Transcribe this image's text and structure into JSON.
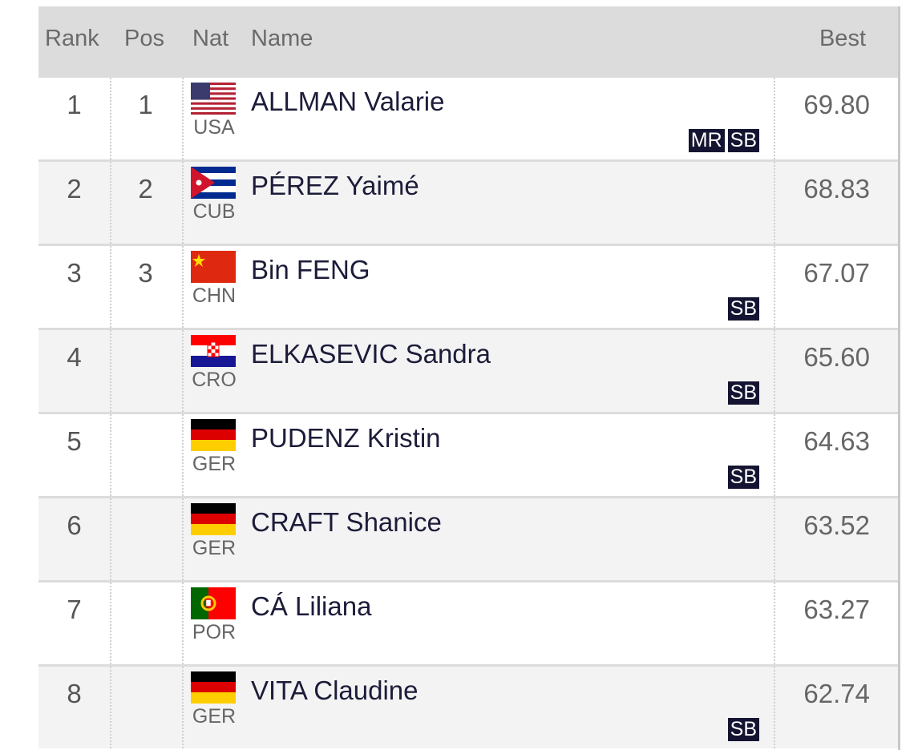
{
  "table": {
    "header": [
      "Rank",
      "Pos",
      "Nat",
      "Name",
      "Best"
    ],
    "rows": [
      {
        "rank": "1",
        "pos": "1",
        "nat": "USA",
        "name": "ALLMAN Valarie",
        "badges": [
          "MR",
          "SB"
        ],
        "best": "69.80"
      },
      {
        "rank": "2",
        "pos": "2",
        "nat": "CUB",
        "name": "PÉREZ Yaimé",
        "best": "68.83"
      },
      {
        "rank": "3",
        "pos": "3",
        "nat": "CHN",
        "name": "Bin FENG",
        "badges": [
          "SB"
        ],
        "best": "67.07"
      },
      {
        "rank": "4",
        "nat": "CRO",
        "name": "ELKASEVIC Sandra",
        "badges": [
          "SB"
        ],
        "best": "65.60"
      },
      {
        "rank": "5",
        "nat": "GER",
        "name": "PUDENZ Kristin",
        "badges": [
          "SB"
        ],
        "best": "64.63"
      },
      {
        "rank": "6",
        "nat": "GER",
        "name": "CRAFT Shanice",
        "best": "63.52"
      },
      {
        "rank": "7",
        "nat": "POR",
        "name": "CÁ Liliana",
        "best": "63.27"
      },
      {
        "rank": "8",
        "nat": "GER",
        "name": "VITA Claudine",
        "badges": [
          "SB"
        ],
        "best": "62.74"
      }
    ]
  }
}
